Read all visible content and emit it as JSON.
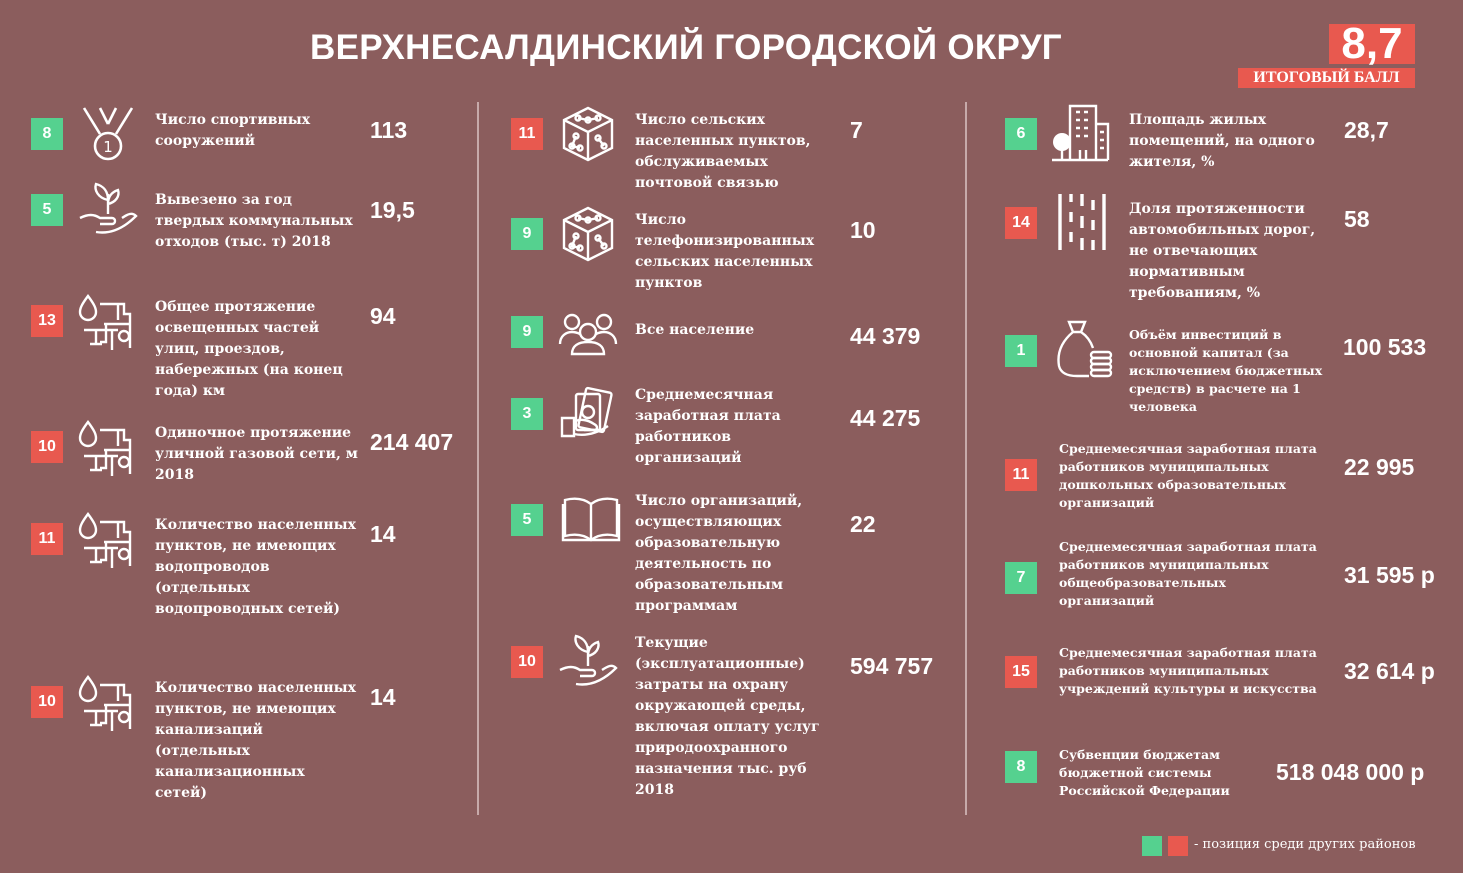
{
  "title": "ВЕРХНЕСАЛДИНСКИЙ ГОРОДСКОЙ ОКРУГ",
  "score": {
    "value": "8,7",
    "label": "ИТОГОВЫЙ БАЛЛ"
  },
  "colors": {
    "background": "#8b5d5d",
    "green": "#55d18f",
    "red": "#e8594f"
  },
  "col1": [
    {
      "rank": "8",
      "color": "green",
      "icon": "medal-icon",
      "label": "Число спортивных сооружений",
      "value": "113"
    },
    {
      "rank": "5",
      "color": "green",
      "icon": "plant-hand-icon",
      "label": "Вывезено за год твердых коммунальных отходов (тыс. т) 2018",
      "value": "19,5"
    },
    {
      "rank": "13",
      "color": "red",
      "icon": "pipes-icon",
      "label": "Общее протяжение освещенных частей улиц, проездов, набережных (на конец года) км",
      "value": "94"
    },
    {
      "rank": "10",
      "color": "red",
      "icon": "pipes-icon",
      "label": "Одиночное протяжение уличной газовой сети, м 2018",
      "value": "214 407"
    },
    {
      "rank": "11",
      "color": "red",
      "icon": "pipes-icon",
      "label": "Количество населенных пунктов, не имеющих водопроводов (отдельных водопроводных сетей)",
      "value": "14"
    },
    {
      "rank": "10",
      "color": "red",
      "icon": "pipes-icon",
      "label": "Количество населенных пунктов, не имеющих канализаций (отдельных канализационных сетей)",
      "value": "14"
    }
  ],
  "col2": [
    {
      "rank": "11",
      "color": "red",
      "icon": "network-cube-icon",
      "label": "Число сельских населенных пунктов, обслуживаемых почтовой связью",
      "value": "7"
    },
    {
      "rank": "9",
      "color": "green",
      "icon": "network-cube-icon",
      "label": "Число телефонизированных сельских населенных пунктов",
      "value": "10"
    },
    {
      "rank": "9",
      "color": "green",
      "icon": "people-icon",
      "label": "Все население",
      "value": "44 379"
    },
    {
      "rank": "3",
      "color": "green",
      "icon": "money-hand-icon",
      "label": "Среднемесячная заработная плата работников организаций",
      "value": "44 275"
    },
    {
      "rank": "5",
      "color": "green",
      "icon": "book-icon",
      "label": "Число организаций, осуществляющих образовательную деятельность по образовательным программам",
      "value": "22"
    },
    {
      "rank": "10",
      "color": "red",
      "icon": "plant-hand-icon",
      "label": "Текущие (эксплуатационные) затраты на охрану окружающей среды, включая оплату услуг природоохранного назначения тыс. руб 2018",
      "value": "594 757"
    }
  ],
  "col3": [
    {
      "rank": "6",
      "color": "green",
      "icon": "building-tree-icon",
      "label": "Площадь жилых помещений, на одного жителя, %",
      "value": "28,7"
    },
    {
      "rank": "14",
      "color": "red",
      "icon": "road-icon",
      "label": "Доля протяженности автомобильных дорог, не отвечающих нормативным требованиям, %",
      "value": "58"
    },
    {
      "rank": "1",
      "color": "green",
      "icon": "money-bag-icon",
      "label": "Объём инвестиций в основной капитал (за исключением бюджетных средств) в расчете на 1 человека",
      "value": "100 533"
    },
    {
      "rank": "11",
      "color": "red",
      "label": "Среднемесячная заработная плата работников муниципальных дошкольных образовательных организаций",
      "value": "22 995"
    },
    {
      "rank": "7",
      "color": "green",
      "label": "Среднемесячная заработная плата работников муниципальных общеобразовательных организаций",
      "value": "31 595 р"
    },
    {
      "rank": "15",
      "color": "red",
      "label": "Среднемесячная заработная плата работников муниципальных учреждений культуры и искусства",
      "value": "32 614 р"
    },
    {
      "rank": "8",
      "color": "green",
      "label": "Субвенции бюджетам бюджетной системы Российской Федерации",
      "value": "518 048 000 р"
    }
  ],
  "legend": {
    "text": "- позиция среди других районов"
  }
}
